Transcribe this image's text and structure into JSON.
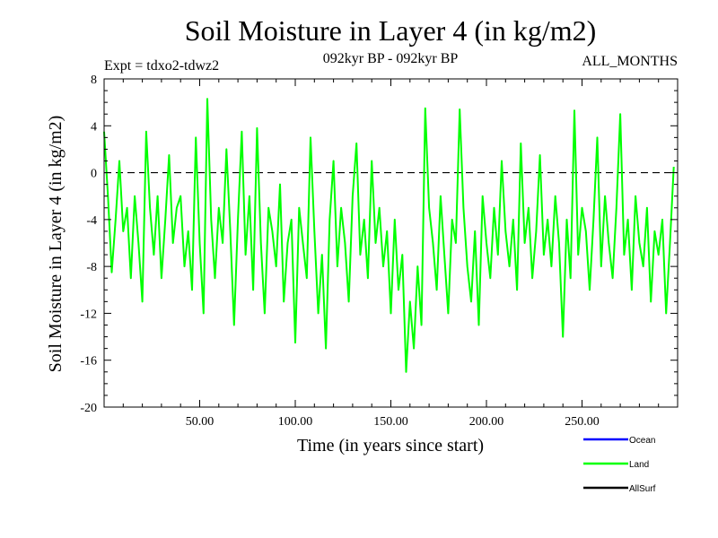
{
  "chart_data": {
    "type": "line",
    "title": "Soil Moisture in Layer 4 (in kg/m2)",
    "subtitle": "092kyr BP - 092kyr BP",
    "experiment_label": "Expt = tdxo2-tdwz2",
    "period_label": "ALL_MONTHS",
    "xlabel": "Time (in years since start)",
    "ylabel": "Soil Moisture in Layer 4 (in kg/m2)",
    "xlim": [
      0,
      300
    ],
    "ylim": [
      -20,
      8
    ],
    "x_tick_values": [
      50,
      100,
      150,
      200,
      250
    ],
    "x_tick_labels": [
      "50.00",
      "100.00",
      "150.00",
      "200.00",
      "250.00"
    ],
    "y_tick_values": [
      8,
      4,
      0,
      -4,
      -8,
      -12,
      -16,
      -20
    ],
    "y_tick_labels": [
      "8",
      "4",
      "0",
      "-4",
      "-8",
      "-12",
      "-16",
      "-20"
    ],
    "reference_line": 0,
    "legend_position": "bottom-right",
    "series": [
      {
        "name": "Land",
        "color": "#00ff00",
        "x": [
          0,
          2,
          4,
          6,
          8,
          10,
          12,
          14,
          16,
          18,
          20,
          22,
          24,
          26,
          28,
          30,
          32,
          34,
          36,
          38,
          40,
          42,
          44,
          46,
          48,
          50,
          52,
          54,
          56,
          58,
          60,
          62,
          64,
          66,
          68,
          70,
          72,
          74,
          76,
          78,
          80,
          82,
          84,
          86,
          88,
          90,
          92,
          94,
          96,
          98,
          100,
          102,
          104,
          106,
          108,
          110,
          112,
          114,
          116,
          118,
          120,
          122,
          124,
          126,
          128,
          130,
          132,
          134,
          136,
          138,
          140,
          142,
          144,
          146,
          148,
          150,
          152,
          154,
          156,
          158,
          160,
          162,
          164,
          166,
          168,
          170,
          172,
          174,
          176,
          178,
          180,
          182,
          184,
          186,
          188,
          190,
          192,
          194,
          196,
          198,
          200,
          202,
          204,
          206,
          208,
          210,
          212,
          214,
          216,
          218,
          220,
          222,
          224,
          226,
          228,
          230,
          232,
          234,
          236,
          238,
          240,
          242,
          244,
          246,
          248,
          250,
          252,
          254,
          256,
          258,
          260,
          262,
          264,
          266,
          268,
          270,
          272,
          274,
          276,
          278,
          280,
          282,
          284,
          286,
          288,
          290,
          292,
          294,
          296,
          298
        ],
        "values": [
          3.5,
          -2,
          -8.5,
          -4,
          1,
          -5,
          -3,
          -9,
          -2,
          -6,
          -11,
          3.5,
          -3,
          -7,
          -2,
          -9,
          -4,
          1.5,
          -6,
          -3,
          -2,
          -8,
          -5,
          -10,
          3,
          -6,
          -12,
          6.3,
          -4,
          -9,
          -3,
          -6,
          2,
          -5,
          -13,
          -4,
          3.5,
          -7,
          -2,
          -10,
          3.8,
          -6,
          -12,
          -3,
          -5,
          -8,
          -1,
          -11,
          -6,
          -4,
          -14.5,
          -3,
          -6,
          -9,
          3,
          -5,
          -12,
          -7,
          -15,
          -4,
          1,
          -8,
          -3,
          -6,
          -11,
          -2,
          2.5,
          -7,
          -4,
          -9,
          1,
          -6,
          -3,
          -8,
          -5,
          -12,
          -4,
          -10,
          -7,
          -17,
          -11,
          -15,
          -8,
          -13,
          5.5,
          -3,
          -6,
          -10,
          -2,
          -7,
          -12,
          -4,
          -6,
          5.4,
          -3,
          -8,
          -11,
          -5,
          -13,
          -2,
          -6,
          -9,
          -3,
          -7,
          1,
          -5,
          -8,
          -4,
          -10,
          2.5,
          -6,
          -3,
          -9,
          -5,
          1.5,
          -7,
          -4,
          -8,
          -2,
          -6,
          -14,
          -4,
          -9,
          5.3,
          -7,
          -3,
          -5,
          -10,
          -4,
          3,
          -8,
          -2,
          -6,
          -9,
          -3,
          5,
          -7,
          -4,
          -10,
          -2,
          -6,
          -8,
          -3,
          -11,
          -5,
          -7,
          -4,
          -12,
          -6,
          0.5
        ]
      }
    ],
    "legend": [
      {
        "name": "Ocean",
        "color": "#0000ff"
      },
      {
        "name": "Land",
        "color": "#00ff00"
      },
      {
        "name": "AllSurf",
        "color": "#000000"
      }
    ]
  }
}
